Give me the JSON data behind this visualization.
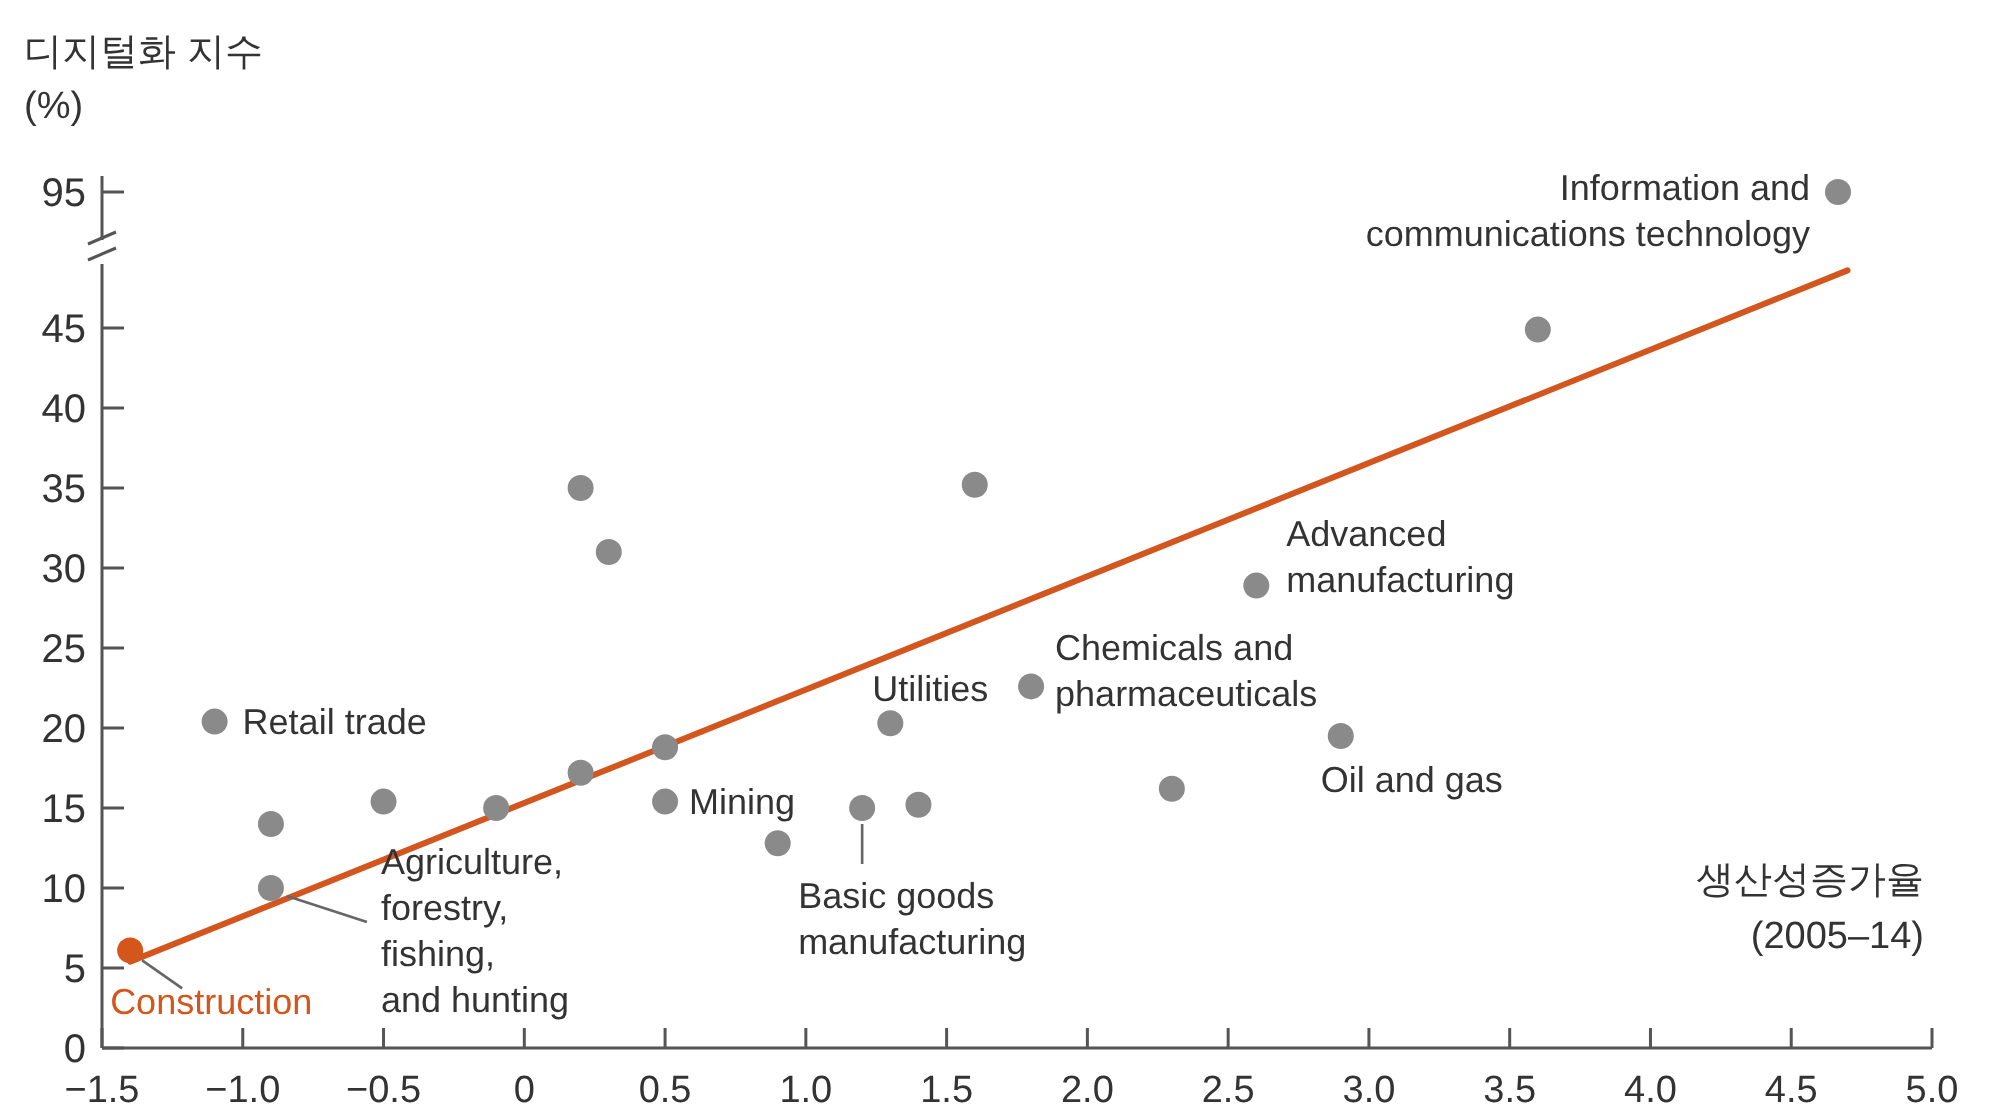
{
  "chart_data": [
    {
      "type": "other",
      "ylabel": "디지털화 지수\n(%)",
      "annotations": [
        "95",
        "Information and\ncommunications technology"
      ]
    },
    {
      "type": "scatter",
      "xlabel": "생산성증가율\n(2005–14)",
      "xlim": [
        -1.5,
        5.0
      ],
      "ylim": [
        0,
        49
      ],
      "xticks": [
        {
          "value": -1.5,
          "label": "−1.5"
        },
        {
          "value": -1,
          "label": "−1.0"
        },
        {
          "value": -0.5,
          "label": "−0.5"
        },
        {
          "value": 0,
          "label": "0"
        },
        {
          "value": 0.5,
          "label": "0.5"
        },
        {
          "value": 1,
          "label": "1.0"
        },
        {
          "value": 1.5,
          "label": "1.5"
        },
        {
          "value": 2,
          "label": "2.0"
        },
        {
          "value": 2.5,
          "label": "2.5"
        },
        {
          "value": 3,
          "label": "3.0"
        },
        {
          "value": 3.5,
          "label": "3.5"
        },
        {
          "value": 4,
          "label": "4.0"
        },
        {
          "value": 4.5,
          "label": "4.5"
        },
        {
          "value": 5,
          "label": "5.0"
        }
      ],
      "yticks": [
        0,
        5,
        10,
        15,
        20,
        25,
        30,
        35,
        40,
        45
      ],
      "series": [
        {
          "color": "#8a8a8a",
          "marker": "circle",
          "x": [
            -1.4,
            -1.1,
            -0.9,
            -0.9,
            -0.5,
            -0.1,
            0.2,
            0.3,
            0.2,
            0.5,
            0.5,
            0.9,
            1.2,
            1.4,
            1.3,
            1.6,
            1.8,
            2.3,
            2.6,
            2.9,
            3.6
          ],
          "values": [
            6.1,
            20.4,
            14,
            10,
            15.4,
            15.0,
            35,
            31,
            17.2,
            18.8,
            15.4,
            12.8,
            15,
            15.2,
            20.3,
            35.2,
            22.6,
            16.2,
            28.9,
            19.5,
            44.9
          ],
          "colors": [
            "#d4561a",
            "#8a8a8a",
            "#8a8a8a",
            "#8a8a8a",
            "#8a8a8a",
            "#8a8a8a",
            "#8a8a8a",
            "#8a8a8a",
            "#8a8a8a",
            "#8a8a8a",
            "#8a8a8a",
            "#8a8a8a",
            "#8a8a8a",
            "#8a8a8a",
            "#8a8a8a",
            "#8a8a8a",
            "#8a8a8a",
            "#8a8a8a",
            "#8a8a8a",
            "#8a8a8a",
            "#8a8a8a"
          ]
        },
        {
          "type": "line",
          "color": "#d2561e",
          "x": [
            -1.4,
            4.7
          ],
          "values": [
            5.4,
            48.6
          ]
        }
      ],
      "annotations": [
        {
          "text": "Retail trade",
          "x": -1.1,
          "y": 20.4
        },
        {
          "text": "Mining",
          "x": 0.5,
          "y": 15.4
        },
        {
          "text": "Utilities",
          "x": 1.3,
          "y": 20.3
        },
        {
          "text": "Chemicals and\npharmaceuticals",
          "x": 1.8,
          "y": 22.6
        },
        {
          "text": "Advanced\nmanufacturing",
          "x": 2.6,
          "y": 28.9
        },
        {
          "text": "Oil and gas",
          "x": 2.9,
          "y": 19.5
        },
        {
          "text": "Basic goods\nmanufacturing",
          "x": 1.2,
          "y": 15
        },
        {
          "text": "Agriculture,\nforestry,\nfishing,\nand hunting",
          "x": -0.9,
          "y": 10
        },
        {
          "text": "Construction",
          "x": -1.4,
          "y": 6.1
        }
      ]
    }
  ]
}
